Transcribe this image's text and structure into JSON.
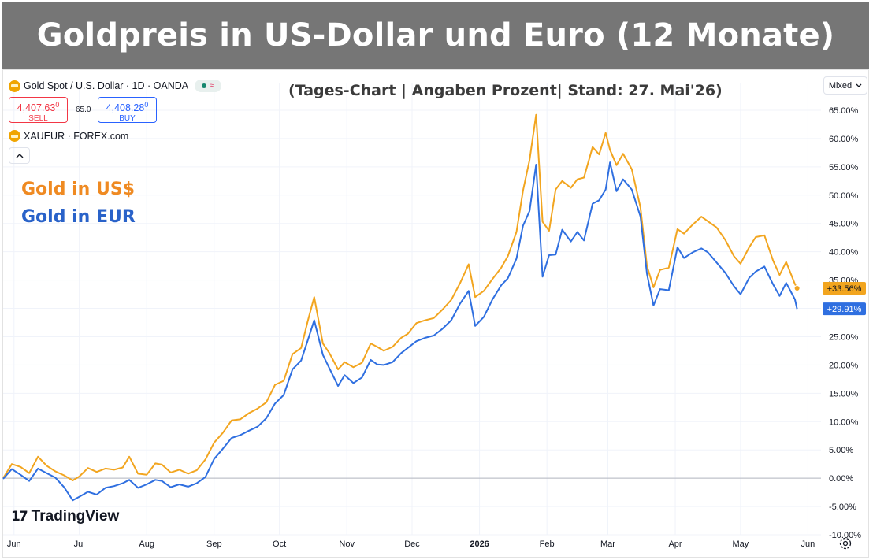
{
  "header": {
    "title": "Goldpreis in US-Dollar und Euro (12 Monate)",
    "subtitle": "(Tages-Chart | Angaben Prozent| Stand: 27. Mai'26)"
  },
  "toolbar": {
    "symbol1": "Gold Spot / U.S. Dollar · 1D · OANDA",
    "symbol2": "XAUEUR · FOREX.com",
    "sell_price": "4,407.63",
    "sell_price_sup": "0",
    "sell_label": "SELL",
    "buy_price": "4,408.28",
    "buy_price_sup": "0",
    "buy_label": "BUY",
    "spread": "65.0",
    "mode": "Mixed",
    "collapse_icon": "chevron-up-icon"
  },
  "legend": {
    "usd_label": "Gold in US$",
    "eur_label": "Gold in EUR"
  },
  "branding": {
    "logo_text": "TradingView"
  },
  "colors": {
    "usd": "#f2a51f",
    "eur": "#2f6fe0",
    "usd_legend_text": "#ef8a22",
    "eur_legend_text": "#2962c9",
    "title_bar": "#767676"
  },
  "chart_data": {
    "type": "line",
    "title": "Goldpreis in US-Dollar und Euro (12 Monate)",
    "xlabel": "",
    "ylabel": "",
    "y_unit": "%",
    "ylim": [
      -10,
      65
    ],
    "y_ticks": [
      "65.00%",
      "60.00%",
      "55.00%",
      "50.00%",
      "45.00%",
      "40.00%",
      "35.00%",
      "30.00%",
      "25.00%",
      "20.00%",
      "15.00%",
      "10.00%",
      "5.00%",
      "0.00%",
      "-5.00%",
      "-10.00%"
    ],
    "x_ticks": [
      "Jun",
      "Jul",
      "Aug",
      "Sep",
      "Oct",
      "Nov",
      "Dec",
      "2026",
      "Feb",
      "Mar",
      "Apr",
      "May",
      "Jun"
    ],
    "x_tick_bold": "2026",
    "xlim": [
      "2025-05-27",
      "2026-06-07"
    ],
    "grid": true,
    "series": [
      {
        "name": "Gold in US$",
        "last_value_label": "+33.56%",
        "points": [
          [
            "2025-05-27",
            0.0
          ],
          [
            "2025-05-31",
            2.5
          ],
          [
            "2025-06-04",
            2.0
          ],
          [
            "2025-06-08",
            0.9
          ],
          [
            "2025-06-12",
            3.8
          ],
          [
            "2025-06-16",
            2.2
          ],
          [
            "2025-06-20",
            1.2
          ],
          [
            "2025-06-24",
            0.5
          ],
          [
            "2025-06-28",
            -0.4
          ],
          [
            "2025-07-01",
            0.3
          ],
          [
            "2025-07-05",
            1.8
          ],
          [
            "2025-07-09",
            1.1
          ],
          [
            "2025-07-13",
            1.7
          ],
          [
            "2025-07-17",
            1.5
          ],
          [
            "2025-07-21",
            1.9
          ],
          [
            "2025-07-24",
            3.8
          ],
          [
            "2025-07-28",
            0.8
          ],
          [
            "2025-08-01",
            0.6
          ],
          [
            "2025-08-05",
            2.6
          ],
          [
            "2025-08-08",
            2.4
          ],
          [
            "2025-08-12",
            1.0
          ],
          [
            "2025-08-16",
            1.5
          ],
          [
            "2025-08-20",
            0.8
          ],
          [
            "2025-08-24",
            1.4
          ],
          [
            "2025-08-28",
            3.3
          ],
          [
            "2025-09-01",
            6.3
          ],
          [
            "2025-09-05",
            8.0
          ],
          [
            "2025-09-09",
            10.2
          ],
          [
            "2025-09-13",
            10.4
          ],
          [
            "2025-09-17",
            11.5
          ],
          [
            "2025-09-21",
            12.3
          ],
          [
            "2025-09-25",
            13.4
          ],
          [
            "2025-09-29",
            16.5
          ],
          [
            "2025-10-03",
            17.2
          ],
          [
            "2025-10-07",
            21.9
          ],
          [
            "2025-10-11",
            23.0
          ],
          [
            "2025-10-14",
            27.7
          ],
          [
            "2025-10-17",
            32.0
          ],
          [
            "2025-10-21",
            23.8
          ],
          [
            "2025-10-24",
            22.1
          ],
          [
            "2025-10-28",
            19.2
          ],
          [
            "2025-10-31",
            20.5
          ],
          [
            "2025-11-04",
            19.6
          ],
          [
            "2025-11-08",
            20.4
          ],
          [
            "2025-11-12",
            23.8
          ],
          [
            "2025-11-15",
            23.2
          ],
          [
            "2025-11-18",
            22.5
          ],
          [
            "2025-11-22",
            23.2
          ],
          [
            "2025-11-26",
            24.8
          ],
          [
            "2025-11-29",
            25.5
          ],
          [
            "2025-12-03",
            27.4
          ],
          [
            "2025-12-07",
            27.9
          ],
          [
            "2025-12-11",
            28.3
          ],
          [
            "2025-12-15",
            29.8
          ],
          [
            "2025-12-19",
            31.5
          ],
          [
            "2025-12-23",
            34.4
          ],
          [
            "2025-12-27",
            37.8
          ],
          [
            "2025-12-30",
            32.0
          ],
          [
            "2026-01-03",
            33.1
          ],
          [
            "2026-01-07",
            35.2
          ],
          [
            "2026-01-11",
            37.2
          ],
          [
            "2026-01-14",
            39.2
          ],
          [
            "2026-01-18",
            43.5
          ],
          [
            "2026-01-21",
            50.8
          ],
          [
            "2026-01-24",
            56.2
          ],
          [
            "2026-01-27",
            64.2
          ],
          [
            "2026-01-30",
            45.3
          ],
          [
            "2026-02-02",
            43.7
          ],
          [
            "2026-02-05",
            51.0
          ],
          [
            "2026-02-08",
            52.5
          ],
          [
            "2026-02-12",
            51.3
          ],
          [
            "2026-02-15",
            52.8
          ],
          [
            "2026-02-18",
            53.1
          ],
          [
            "2026-02-22",
            58.5
          ],
          [
            "2026-02-25",
            57.2
          ],
          [
            "2026-02-28",
            61.0
          ],
          [
            "2026-03-02",
            58.0
          ],
          [
            "2026-03-05",
            55.3
          ],
          [
            "2026-03-08",
            57.3
          ],
          [
            "2026-03-12",
            54.6
          ],
          [
            "2026-03-16",
            47.8
          ],
          [
            "2026-03-19",
            37.5
          ],
          [
            "2026-03-22",
            33.7
          ],
          [
            "2026-03-25",
            36.8
          ],
          [
            "2026-03-29",
            37.2
          ],
          [
            "2026-04-02",
            44.0
          ],
          [
            "2026-04-05",
            43.2
          ],
          [
            "2026-04-09",
            44.8
          ],
          [
            "2026-04-13",
            46.2
          ],
          [
            "2026-04-16",
            45.4
          ],
          [
            "2026-04-20",
            44.3
          ],
          [
            "2026-04-24",
            42.1
          ],
          [
            "2026-04-28",
            39.2
          ],
          [
            "2026-05-01",
            37.9
          ],
          [
            "2026-05-05",
            40.8
          ],
          [
            "2026-05-08",
            42.6
          ],
          [
            "2026-05-12",
            42.9
          ],
          [
            "2026-05-16",
            38.4
          ],
          [
            "2026-05-19",
            35.9
          ],
          [
            "2026-05-22",
            38.2
          ],
          [
            "2026-05-26",
            34.3
          ],
          [
            "2026-05-27",
            33.56
          ]
        ]
      },
      {
        "name": "Gold in EUR",
        "last_value_label": "+29.91%",
        "points": [
          [
            "2025-05-27",
            -0.1
          ],
          [
            "2025-05-31",
            1.6
          ],
          [
            "2025-06-04",
            0.6
          ],
          [
            "2025-06-08",
            -0.5
          ],
          [
            "2025-06-12",
            1.7
          ],
          [
            "2025-06-16",
            0.9
          ],
          [
            "2025-06-20",
            0.1
          ],
          [
            "2025-06-24",
            -1.6
          ],
          [
            "2025-06-28",
            -3.9
          ],
          [
            "2025-07-01",
            -3.3
          ],
          [
            "2025-07-05",
            -2.4
          ],
          [
            "2025-07-09",
            -2.9
          ],
          [
            "2025-07-13",
            -1.7
          ],
          [
            "2025-07-17",
            -1.4
          ],
          [
            "2025-07-21",
            -0.9
          ],
          [
            "2025-07-24",
            -0.3
          ],
          [
            "2025-07-28",
            -1.7
          ],
          [
            "2025-08-01",
            -1.1
          ],
          [
            "2025-08-05",
            -0.3
          ],
          [
            "2025-08-08",
            -0.5
          ],
          [
            "2025-08-12",
            -1.6
          ],
          [
            "2025-08-16",
            -1.1
          ],
          [
            "2025-08-20",
            -1.5
          ],
          [
            "2025-08-24",
            -0.9
          ],
          [
            "2025-08-28",
            0.2
          ],
          [
            "2025-09-01",
            3.4
          ],
          [
            "2025-09-05",
            5.2
          ],
          [
            "2025-09-09",
            7.1
          ],
          [
            "2025-09-13",
            7.6
          ],
          [
            "2025-09-17",
            8.4
          ],
          [
            "2025-09-21",
            9.1
          ],
          [
            "2025-09-25",
            10.6
          ],
          [
            "2025-09-29",
            13.2
          ],
          [
            "2025-10-03",
            14.7
          ],
          [
            "2025-10-07",
            19.2
          ],
          [
            "2025-10-11",
            20.8
          ],
          [
            "2025-10-14",
            24.3
          ],
          [
            "2025-10-17",
            27.9
          ],
          [
            "2025-10-21",
            21.8
          ],
          [
            "2025-10-24",
            19.4
          ],
          [
            "2025-10-28",
            16.3
          ],
          [
            "2025-10-31",
            18.2
          ],
          [
            "2025-11-04",
            16.8
          ],
          [
            "2025-11-08",
            17.8
          ],
          [
            "2025-11-12",
            20.9
          ],
          [
            "2025-11-15",
            20.1
          ],
          [
            "2025-11-18",
            20.0
          ],
          [
            "2025-11-22",
            20.5
          ],
          [
            "2025-11-26",
            22.1
          ],
          [
            "2025-11-29",
            23.0
          ],
          [
            "2025-12-03",
            24.2
          ],
          [
            "2025-12-07",
            24.8
          ],
          [
            "2025-12-11",
            25.2
          ],
          [
            "2025-12-15",
            26.4
          ],
          [
            "2025-12-19",
            27.9
          ],
          [
            "2025-12-23",
            30.8
          ],
          [
            "2025-12-27",
            33.1
          ],
          [
            "2025-12-30",
            26.9
          ],
          [
            "2026-01-03",
            28.5
          ],
          [
            "2026-01-07",
            31.6
          ],
          [
            "2026-01-11",
            34.1
          ],
          [
            "2026-01-14",
            35.3
          ],
          [
            "2026-01-18",
            38.8
          ],
          [
            "2026-01-21",
            44.6
          ],
          [
            "2026-01-24",
            47.2
          ],
          [
            "2026-01-27",
            55.4
          ],
          [
            "2026-01-30",
            35.6
          ],
          [
            "2026-02-02",
            39.4
          ],
          [
            "2026-02-05",
            39.5
          ],
          [
            "2026-02-08",
            43.9
          ],
          [
            "2026-02-12",
            41.8
          ],
          [
            "2026-02-15",
            43.5
          ],
          [
            "2026-02-18",
            42.0
          ],
          [
            "2026-02-22",
            48.5
          ],
          [
            "2026-02-25",
            49.1
          ],
          [
            "2026-02-28",
            51.0
          ],
          [
            "2026-03-02",
            55.8
          ],
          [
            "2026-03-05",
            50.7
          ],
          [
            "2026-03-08",
            52.8
          ],
          [
            "2026-03-12",
            51.0
          ],
          [
            "2026-03-16",
            46.2
          ],
          [
            "2026-03-19",
            36.1
          ],
          [
            "2026-03-22",
            30.5
          ],
          [
            "2026-03-25",
            33.4
          ],
          [
            "2026-03-29",
            33.2
          ],
          [
            "2026-04-02",
            40.8
          ],
          [
            "2026-04-05",
            38.9
          ],
          [
            "2026-04-09",
            39.9
          ],
          [
            "2026-04-13",
            40.6
          ],
          [
            "2026-04-16",
            39.9
          ],
          [
            "2026-04-20",
            38.1
          ],
          [
            "2026-04-24",
            36.3
          ],
          [
            "2026-04-28",
            33.9
          ],
          [
            "2026-05-01",
            32.5
          ],
          [
            "2026-05-05",
            35.4
          ],
          [
            "2026-05-08",
            36.5
          ],
          [
            "2026-05-12",
            37.4
          ],
          [
            "2026-05-16",
            34.2
          ],
          [
            "2026-05-19",
            32.2
          ],
          [
            "2026-05-22",
            34.5
          ],
          [
            "2026-05-26",
            31.6
          ],
          [
            "2026-05-27",
            29.91
          ]
        ]
      }
    ],
    "zero_line": true
  }
}
